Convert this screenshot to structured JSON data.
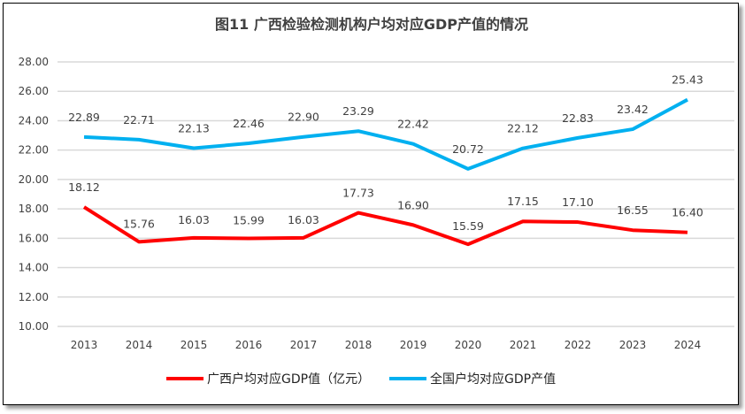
{
  "chart_data": {
    "type": "line",
    "title": "图11 广西检验检测机构户均对应GDP产值的情况",
    "categories": [
      "2013",
      "2014",
      "2015",
      "2016",
      "2017",
      "2018",
      "2019",
      "2020",
      "2021",
      "2022",
      "2023",
      "2024"
    ],
    "ylim": [
      10,
      28
    ],
    "yticks": [
      "10.00",
      "12.00",
      "14.00",
      "16.00",
      "18.00",
      "20.00",
      "22.00",
      "24.00",
      "26.00",
      "28.00"
    ],
    "grid": true,
    "legend_position": "bottom",
    "series": [
      {
        "name": "广西户均对应GDP值（亿元）",
        "color": "#ff0000",
        "values": [
          18.12,
          15.76,
          16.03,
          15.99,
          16.03,
          17.73,
          16.9,
          15.59,
          17.15,
          17.1,
          16.55,
          16.4
        ]
      },
      {
        "name": "全国户均对应GDP产值",
        "color": "#00b0f0",
        "values": [
          22.89,
          22.71,
          22.13,
          22.46,
          22.9,
          23.29,
          22.42,
          20.72,
          22.12,
          22.83,
          23.42,
          25.43
        ]
      }
    ]
  }
}
